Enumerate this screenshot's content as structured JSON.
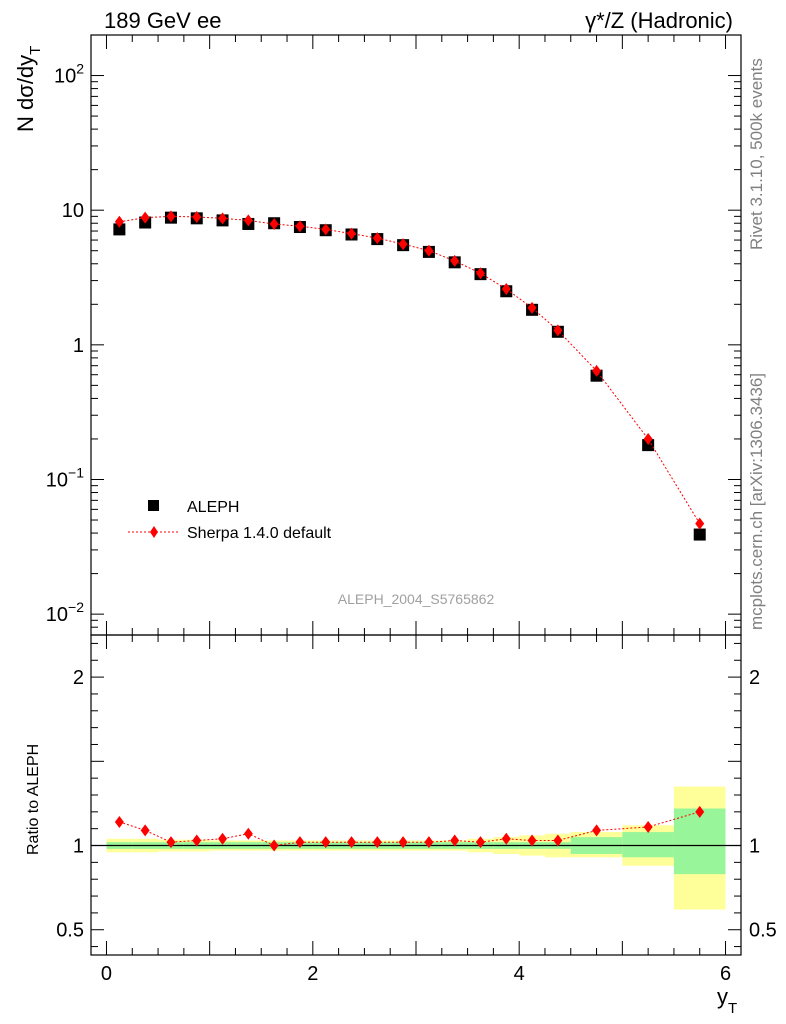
{
  "header": {
    "left_title": "189 GeV ee",
    "right_title": "γ*/Z (Hadronic)"
  },
  "side_labels": {
    "rivet": "Rivet 3.1.10,  500k events",
    "mcplots": "mcplots.cern.ch [arXiv:1306.3436]"
  },
  "watermark": "ALEPH_2004_S5765862",
  "colors": {
    "data": "#000000",
    "mc": "#ff0000",
    "band_inner": "#99f599",
    "band_outer": "#ffff99"
  },
  "chart_data": [
    {
      "type": "scatter",
      "scale": "log",
      "ylabel_main": "N dσ/dy",
      "ylabel_sub": "T",
      "xlim": [
        -0.15,
        6.15
      ],
      "ylim": [
        0.007,
        200
      ],
      "y_ticks": [
        {
          "value": 100,
          "base": "10",
          "exp": "2"
        },
        {
          "value": 10,
          "base": "10",
          "exp": ""
        },
        {
          "value": 1,
          "base": "1",
          "exp": ""
        },
        {
          "value": 0.1,
          "base": "10",
          "exp": "−1"
        },
        {
          "value": 0.01,
          "base": "10",
          "exp": "−2"
        }
      ],
      "legend": {
        "placement": "bottom-left",
        "entries": [
          "ALEPH",
          "Sherpa 1.4.0 default"
        ]
      },
      "x": [
        0.125,
        0.375,
        0.625,
        0.875,
        1.125,
        1.375,
        1.625,
        1.875,
        2.125,
        2.375,
        2.625,
        2.875,
        3.125,
        3.375,
        3.625,
        3.875,
        4.125,
        4.375,
        4.75,
        5.25,
        5.75
      ],
      "series": [
        {
          "name": "ALEPH",
          "values": [
            7.2,
            8.1,
            8.8,
            8.7,
            8.4,
            7.9,
            8.0,
            7.5,
            7.1,
            6.6,
            6.1,
            5.5,
            4.9,
            4.1,
            3.35,
            2.5,
            1.82,
            1.25,
            0.59,
            0.18,
            0.039
          ]
        },
        {
          "name": "Sherpa 1.4.0 default",
          "values": [
            8.2,
            8.8,
            9.0,
            8.9,
            8.7,
            8.4,
            7.9,
            7.6,
            7.2,
            6.7,
            6.2,
            5.6,
            5.0,
            4.2,
            3.4,
            2.6,
            1.88,
            1.28,
            0.64,
            0.2,
            0.047
          ]
        }
      ]
    },
    {
      "type": "scatter",
      "ylabel": "Ratio to ALEPH",
      "xlabel_main": "y",
      "xlabel_sub": "T",
      "xlim": [
        -0.15,
        6.15
      ],
      "ylim": [
        0.35,
        2.25
      ],
      "x_ticks": [
        "0",
        "2",
        "4",
        "6"
      ],
      "y_ticks": [
        "0.5",
        "1",
        "2"
      ],
      "x": [
        0.125,
        0.375,
        0.625,
        0.875,
        1.125,
        1.375,
        1.625,
        1.875,
        2.125,
        2.375,
        2.625,
        2.875,
        3.125,
        3.375,
        3.625,
        3.875,
        4.125,
        4.375,
        4.75,
        5.25,
        5.75
      ],
      "ratio": [
        1.14,
        1.09,
        1.02,
        1.03,
        1.04,
        1.07,
        1.0,
        1.02,
        1.02,
        1.02,
        1.02,
        1.02,
        1.02,
        1.03,
        1.02,
        1.04,
        1.03,
        1.03,
        1.09,
        1.11,
        1.2
      ],
      "bands": {
        "edges": [
          0.0,
          0.25,
          0.5,
          0.75,
          1.0,
          1.25,
          1.5,
          1.75,
          2.0,
          2.25,
          2.5,
          2.75,
          3.0,
          3.25,
          3.5,
          3.75,
          4.0,
          4.25,
          4.5,
          5.0,
          5.5,
          6.0
        ],
        "inner_low": [
          0.98,
          0.98,
          0.98,
          0.98,
          0.98,
          0.98,
          0.98,
          0.98,
          0.98,
          0.98,
          0.98,
          0.98,
          0.98,
          0.98,
          0.98,
          0.98,
          0.98,
          0.98,
          0.95,
          0.93,
          0.83
        ],
        "inner_high": [
          1.02,
          1.02,
          1.02,
          1.02,
          1.02,
          1.02,
          1.02,
          1.02,
          1.02,
          1.02,
          1.02,
          1.02,
          1.02,
          1.02,
          1.02,
          1.02,
          1.02,
          1.02,
          1.05,
          1.08,
          1.22
        ],
        "outer_low": [
          0.96,
          0.96,
          0.965,
          0.965,
          0.97,
          0.97,
          0.97,
          0.97,
          0.97,
          0.97,
          0.97,
          0.97,
          0.97,
          0.97,
          0.96,
          0.95,
          0.94,
          0.93,
          0.93,
          0.88,
          0.62
        ],
        "outer_high": [
          1.04,
          1.04,
          1.035,
          1.035,
          1.03,
          1.03,
          1.03,
          1.03,
          1.03,
          1.03,
          1.03,
          1.03,
          1.03,
          1.03,
          1.04,
          1.05,
          1.06,
          1.07,
          1.08,
          1.12,
          1.35
        ]
      }
    }
  ]
}
